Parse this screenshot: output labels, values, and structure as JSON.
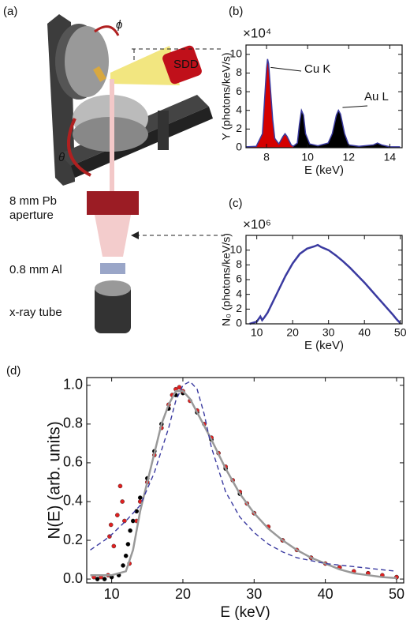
{
  "diagram": {
    "panel_label": "(a)",
    "phi": "ϕ",
    "theta": "θ",
    "detector": "SDD",
    "aperture": [
      "8 mm Pb",
      "aperture"
    ],
    "filter": "0.8 mm Al",
    "tube": "x-ray tube"
  },
  "chart_data": [
    {
      "type": "area",
      "panel_label": "(b)",
      "y_multiplier": "×10⁴",
      "y_label": "Y (photons/keV/s)",
      "x_label": "E (keV)",
      "xlim": [
        7,
        14.6
      ],
      "xticks": [
        8,
        10,
        12,
        14
      ],
      "ylim": [
        0,
        11
      ],
      "yticks": [
        0,
        2,
        4,
        6,
        8,
        10
      ],
      "grid": false,
      "annotations": [
        "Cu K",
        "Au L"
      ],
      "series": [
        {
          "kind": "area",
          "color": "#d40000",
          "stroke": "#3a3aa0",
          "x": [
            7.0,
            7.5,
            7.8,
            7.9,
            8.0,
            8.05,
            8.1,
            8.2,
            8.3,
            8.4,
            8.6,
            8.8,
            8.9,
            9.0,
            9.2,
            9.3
          ],
          "values": [
            0.1,
            0.15,
            1.5,
            5,
            8.5,
            9.5,
            9,
            6,
            3,
            1,
            0.4,
            1.2,
            1.5,
            1.2,
            0.3,
            0.15
          ]
        },
        {
          "kind": "area",
          "color": "#000000",
          "stroke": "#3a3aa0",
          "x": [
            9.3,
            9.5,
            9.6,
            9.7,
            9.8,
            9.9,
            10.1,
            10.5,
            11.0,
            11.2,
            11.4,
            11.5,
            11.6,
            11.8,
            12.0,
            12.5,
            13.2,
            13.4,
            13.6,
            14.0,
            14.5
          ],
          "values": [
            0.15,
            0.5,
            2.5,
            4,
            3.5,
            1.5,
            0.4,
            0.2,
            0.5,
            1.5,
            3.5,
            4,
            3.6,
            1.5,
            0.3,
            0.15,
            0.3,
            0.5,
            0.3,
            0.1,
            0.1
          ]
        }
      ]
    },
    {
      "type": "line",
      "panel_label": "(c)",
      "y_multiplier": "×10⁶",
      "y_label": "N₀ (photons/keV/s)",
      "x_label": "E (keV)",
      "xlim": [
        7,
        50.5
      ],
      "xticks": [
        10,
        20,
        30,
        40,
        50
      ],
      "ylim": [
        0,
        12
      ],
      "yticks": [
        0,
        2,
        4,
        6,
        8,
        10
      ],
      "grid": false,
      "series": [
        {
          "kind": "line",
          "color": "#3a3aa0",
          "x": [
            8,
            10,
            11,
            11.5,
            12,
            13,
            14,
            16,
            18,
            20,
            22,
            24,
            26,
            27,
            28,
            30,
            32,
            34,
            36,
            38,
            40,
            42,
            44,
            46,
            48,
            49,
            50
          ],
          "values": [
            0,
            0.3,
            1,
            0.5,
            0.8,
            1.5,
            2.5,
            4.5,
            6.5,
            8.2,
            9.5,
            10.2,
            10.5,
            10.7,
            10.4,
            10,
            9.3,
            8.5,
            7.6,
            6.6,
            5.6,
            4.5,
            3.4,
            2.3,
            1.2,
            0.6,
            0.1
          ]
        }
      ]
    },
    {
      "type": "scatter",
      "panel_label": "(d)",
      "y_label": "N(E) (arb. units)",
      "x_label": "E (keV)",
      "xlim": [
        6.5,
        51
      ],
      "xticks": [
        10,
        20,
        30,
        40,
        50
      ],
      "ylim": [
        -0.02,
        1.04
      ],
      "yticks": [
        {
          "value": 0,
          "label": "0.0"
        },
        0.2,
        0.4,
        0.6,
        0.8,
        {
          "value": 1,
          "label": "1.0"
        }
      ],
      "grid": false,
      "series": [
        {
          "kind": "points",
          "color": "#000000",
          "x": [
            8,
            9,
            10,
            11,
            11.6,
            12,
            12.3,
            12.6,
            13,
            13.5,
            14,
            15,
            16,
            17,
            18,
            19,
            20,
            22,
            24,
            26,
            28,
            30,
            34,
            38,
            42,
            46,
            50
          ],
          "values": [
            0,
            0,
            0.01,
            0.02,
            0.07,
            0.12,
            0.18,
            0.25,
            0.3,
            0.35,
            0.42,
            0.52,
            0.66,
            0.8,
            0.88,
            0.95,
            0.96,
            0.86,
            0.72,
            0.57,
            0.44,
            0.34,
            0.2,
            0.11,
            0.06,
            0.03,
            0.01
          ]
        },
        {
          "kind": "points",
          "color": "#e02020",
          "x": [
            7.5,
            8.5,
            9.5,
            9.7,
            9.9,
            10.3,
            10.8,
            11.2,
            11.5,
            11.8,
            12.5,
            13.5,
            14,
            15,
            16,
            17,
            18,
            18.5,
            19,
            19.5,
            20,
            21,
            22,
            23,
            24,
            25,
            26,
            27,
            28,
            29,
            30,
            32,
            34,
            36,
            38,
            40,
            42,
            44,
            46,
            48,
            50
          ],
          "values": [
            0.01,
            0.01,
            0.02,
            0.22,
            0.28,
            0.17,
            0.33,
            0.48,
            0.4,
            0.3,
            0.08,
            0.3,
            0.4,
            0.5,
            0.64,
            0.78,
            0.9,
            0.95,
            0.98,
            0.99,
            0.97,
            0.92,
            0.87,
            0.8,
            0.73,
            0.65,
            0.58,
            0.51,
            0.45,
            0.39,
            0.34,
            0.27,
            0.2,
            0.15,
            0.11,
            0.08,
            0.06,
            0.04,
            0.03,
            0.02,
            0.01
          ]
        },
        {
          "kind": "line",
          "color": "#999999",
          "x": [
            7,
            10,
            12,
            13,
            14,
            15,
            16,
            17,
            18,
            19,
            20,
            21,
            22,
            24,
            26,
            28,
            30,
            32,
            34,
            36,
            38,
            40,
            42,
            44,
            46,
            48,
            50
          ],
          "values": [
            0.02,
            0.02,
            0.04,
            0.15,
            0.35,
            0.5,
            0.65,
            0.8,
            0.9,
            0.97,
            0.97,
            0.93,
            0.86,
            0.72,
            0.57,
            0.44,
            0.34,
            0.26,
            0.2,
            0.15,
            0.11,
            0.08,
            0.05,
            0.03,
            0.02,
            0.01,
            0.005
          ]
        },
        {
          "kind": "line",
          "dashed": true,
          "color": "#3a3aa0",
          "x": [
            7,
            9,
            10,
            12,
            14,
            16,
            18,
            19,
            20,
            21,
            22,
            23,
            24,
            26,
            28,
            30,
            32,
            34,
            36,
            40,
            45,
            50
          ],
          "values": [
            0.15,
            0.2,
            0.23,
            0.3,
            0.38,
            0.55,
            0.78,
            0.92,
            1.0,
            1.02,
            0.98,
            0.85,
            0.68,
            0.45,
            0.32,
            0.24,
            0.18,
            0.14,
            0.11,
            0.08,
            0.06,
            0.04
          ]
        }
      ]
    }
  ]
}
